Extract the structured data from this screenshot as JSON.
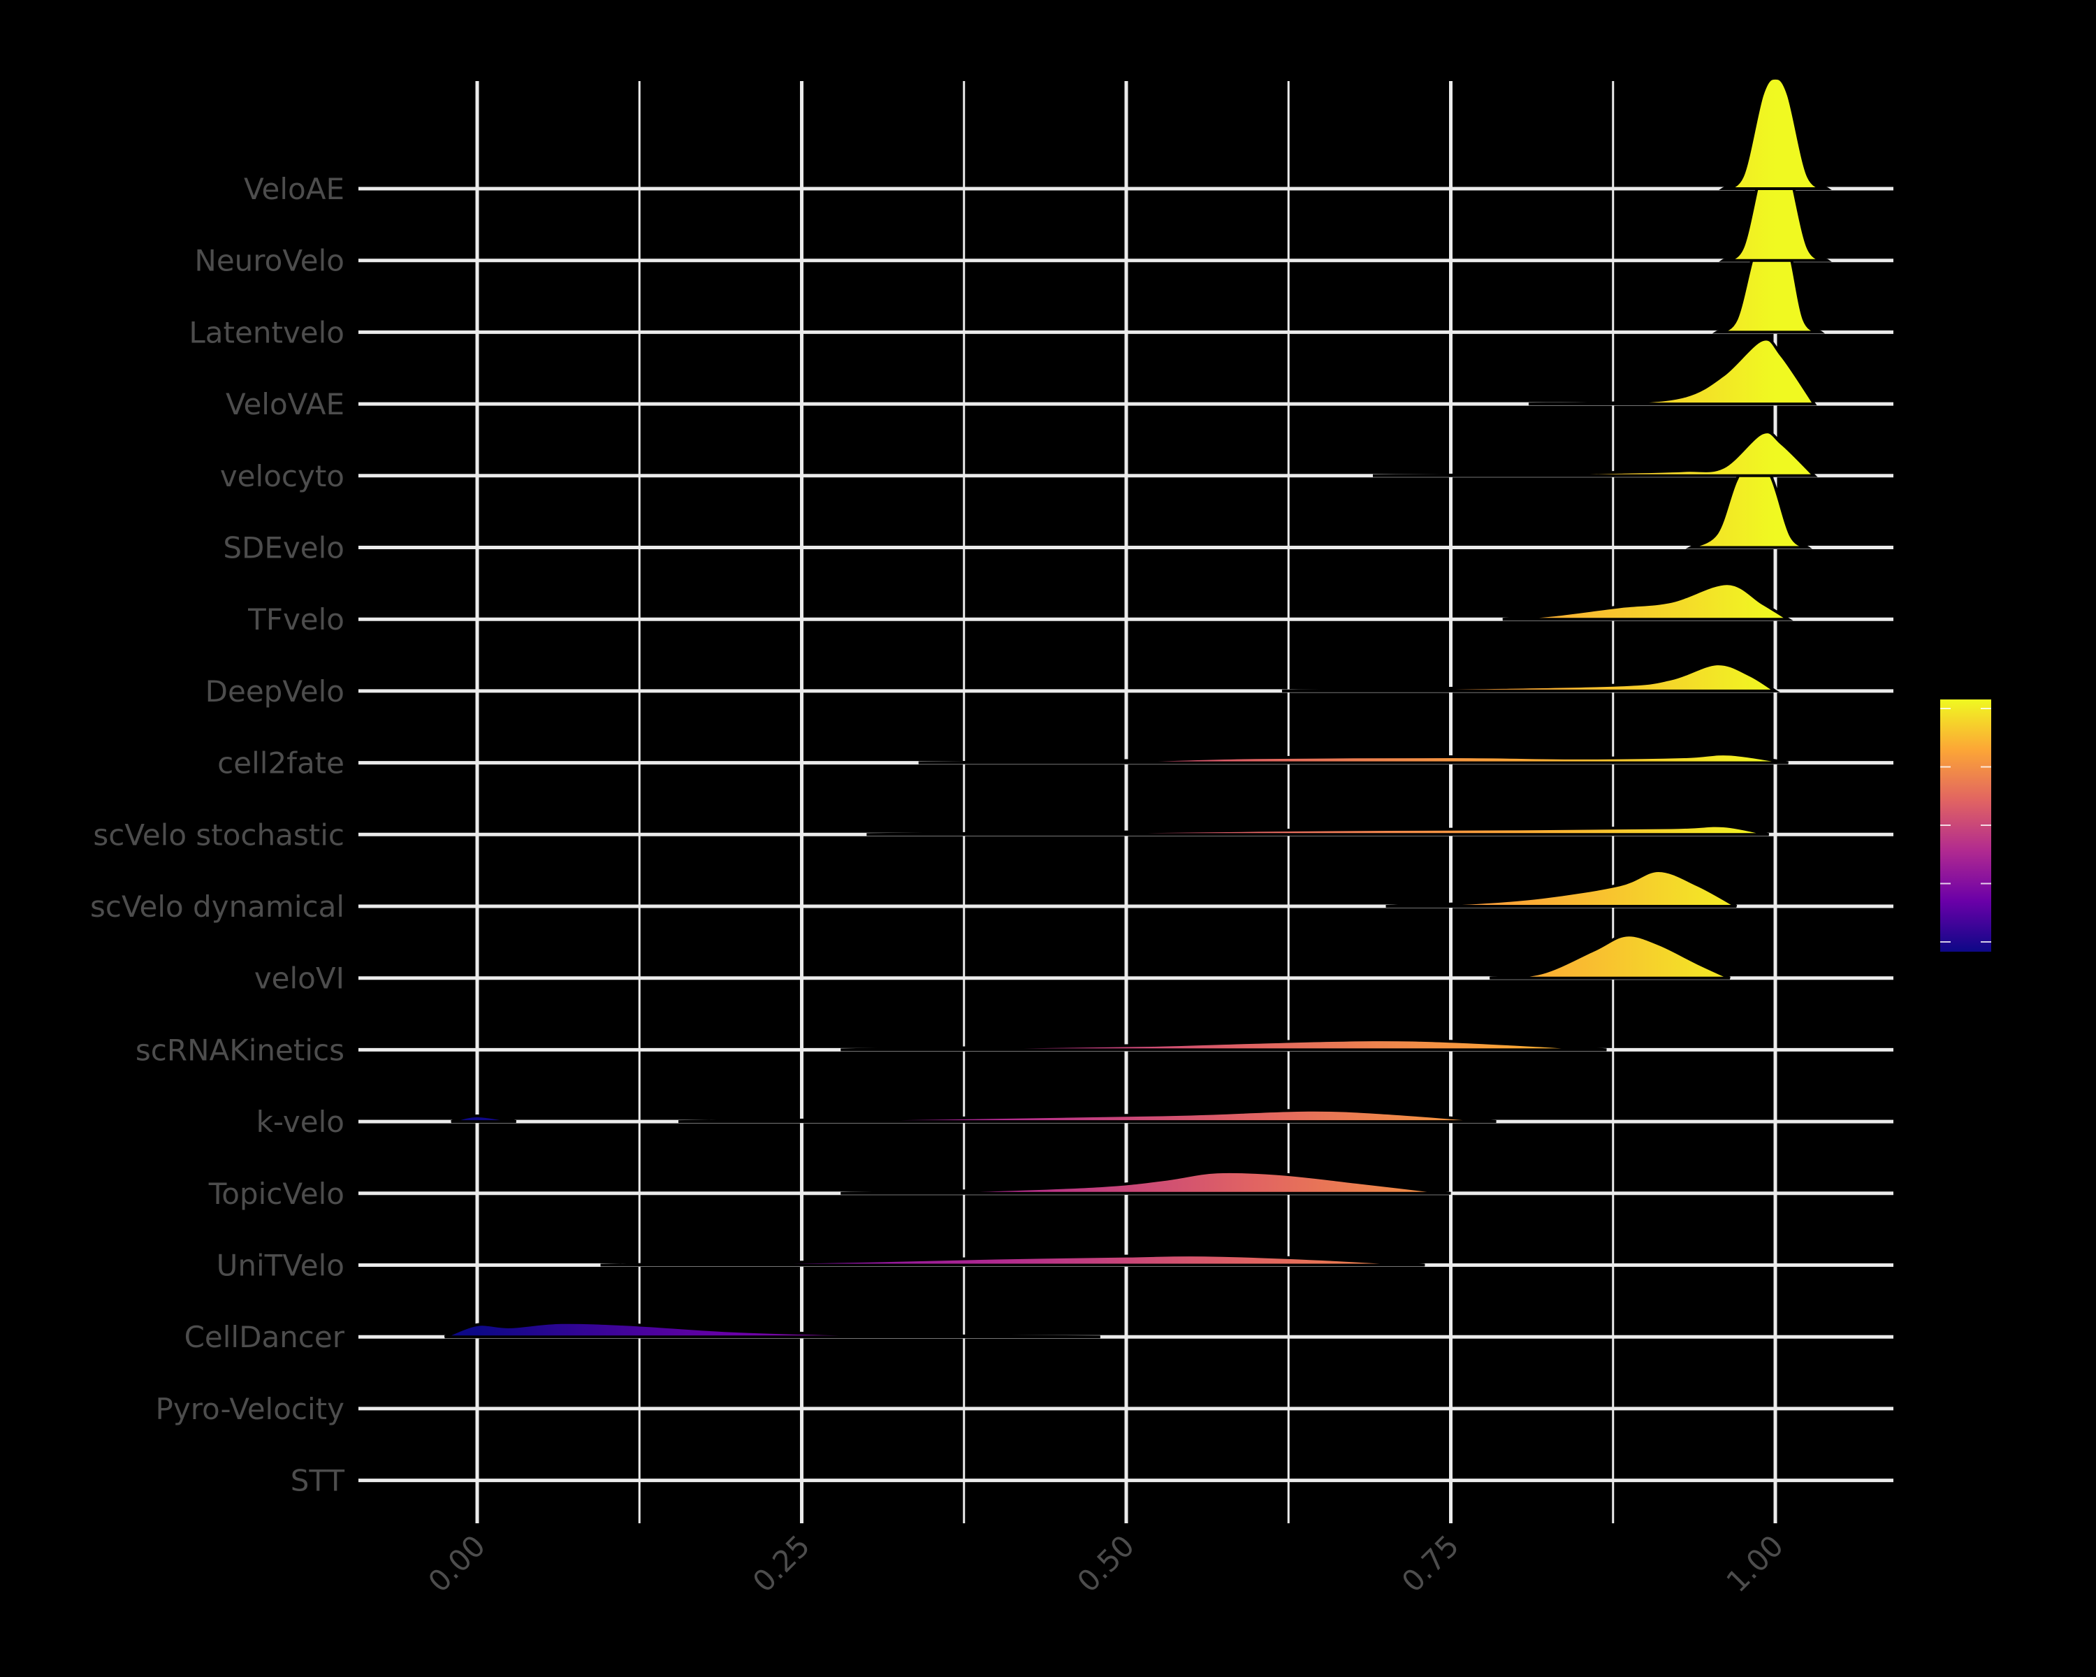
{
  "chart_data": {
    "type": "ridgeline",
    "title": "",
    "xlabel": "",
    "ylabel": "",
    "xlim": [
      -0.04,
      1.08
    ],
    "x_ticks": [
      0.0,
      0.25,
      0.5,
      0.75,
      1.0
    ],
    "x_tick_labels": [
      "0.00",
      "0.25",
      "0.50",
      "0.75",
      "1.00"
    ],
    "x_tick_label_rotation": -45,
    "grid": true,
    "background": "#000000",
    "grid_color": "#ebebeb",
    "label_color": "#4d4d4d",
    "fill_colormap": "plasma",
    "colormap_stops": [
      "#0d0887",
      "#6a00a8",
      "#b12a90",
      "#e16462",
      "#fca636",
      "#f0f921"
    ],
    "legend": {
      "type": "colorbar",
      "position": "right",
      "title": "",
      "tick_count": 5,
      "tick_labels_visible": false
    },
    "categories": [
      "VeloAE",
      "NeuroVelo",
      "Latentvelo",
      "VeloVAE",
      "velocyto",
      "SDEvelo",
      "TFvelo",
      "DeepVelo",
      "cell2fate",
      "scVelo stochastic",
      "scVelo dynamical",
      "veloVI",
      "scRNAKinetics",
      "k-velo",
      "TopicVelo",
      "UniTVelo",
      "CellDancer",
      "Pyro-Velocity",
      "STT"
    ],
    "series": [
      {
        "name": "VeloAE",
        "range": [
          0.96,
          1.04
        ],
        "peak": 1.0,
        "peak_height": 1.55,
        "shape": [
          [
            0.96,
            0
          ],
          [
            0.975,
            0.12
          ],
          [
            0.99,
            0.85
          ],
          [
            1.0,
            1.0
          ],
          [
            1.01,
            0.85
          ],
          [
            1.025,
            0.12
          ],
          [
            1.04,
            0
          ]
        ]
      },
      {
        "name": "NeuroVelo",
        "range": [
          0.96,
          1.04
        ],
        "peak": 1.0,
        "peak_height": 1.55,
        "shape": [
          [
            0.96,
            0
          ],
          [
            0.975,
            0.12
          ],
          [
            0.99,
            0.85
          ],
          [
            1.0,
            1.0
          ],
          [
            1.01,
            0.85
          ],
          [
            1.025,
            0.12
          ],
          [
            1.04,
            0
          ]
        ]
      },
      {
        "name": "Latentvelo",
        "range": [
          0.955,
          1.035
        ],
        "peak": 0.998,
        "peak_height": 1.5,
        "shape": [
          [
            0.955,
            0
          ],
          [
            0.97,
            0.12
          ],
          [
            0.985,
            0.8
          ],
          [
            0.998,
            1.0
          ],
          [
            1.01,
            0.8
          ],
          [
            1.022,
            0.12
          ],
          [
            1.035,
            0
          ]
        ]
      },
      {
        "name": "VeloVAE",
        "range": [
          0.81,
          1.03
        ],
        "peak": 0.99,
        "peak_height": 0.9,
        "shape": [
          [
            0.81,
            0
          ],
          [
            0.88,
            0.02
          ],
          [
            0.93,
            0.12
          ],
          [
            0.96,
            0.45
          ],
          [
            0.99,
            1.0
          ],
          [
            1.005,
            0.75
          ],
          [
            1.03,
            0
          ]
        ]
      },
      {
        "name": "velocyto",
        "range": [
          0.69,
          1.03
        ],
        "peak": 0.99,
        "peak_height": 0.6,
        "shape": [
          [
            0.69,
            0
          ],
          [
            0.8,
            0.03
          ],
          [
            0.88,
            0.08
          ],
          [
            0.93,
            0.12
          ],
          [
            0.96,
            0.2
          ],
          [
            0.99,
            1.0
          ],
          [
            1.005,
            0.75
          ],
          [
            1.03,
            0
          ]
        ]
      },
      {
        "name": "SDEvelo",
        "range": [
          0.935,
          1.025
        ],
        "peak": 0.985,
        "peak_height": 1.35,
        "shape": [
          [
            0.935,
            0
          ],
          [
            0.955,
            0.15
          ],
          [
            0.97,
            0.7
          ],
          [
            0.985,
            1.0
          ],
          [
            0.998,
            0.7
          ],
          [
            1.012,
            0.12
          ],
          [
            1.025,
            0
          ]
        ]
      },
      {
        "name": "TFvelo",
        "range": [
          0.79,
          1.01
        ],
        "peak": 0.963,
        "peak_height": 0.5,
        "shape": [
          [
            0.79,
            0
          ],
          [
            0.83,
            0.12
          ],
          [
            0.88,
            0.35
          ],
          [
            0.92,
            0.5
          ],
          [
            0.963,
            1.0
          ],
          [
            0.99,
            0.45
          ],
          [
            1.01,
            0
          ]
        ]
      },
      {
        "name": "DeepVelo",
        "range": [
          0.62,
          1.0
        ],
        "peak": 0.955,
        "peak_height": 0.38,
        "shape": [
          [
            0.62,
            0
          ],
          [
            0.75,
            0.1
          ],
          [
            0.88,
            0.22
          ],
          [
            0.92,
            0.45
          ],
          [
            0.955,
            1.0
          ],
          [
            0.98,
            0.6
          ],
          [
            1.0,
            0
          ]
        ]
      },
      {
        "name": "cell2fate",
        "range": [
          0.34,
          1.01
        ],
        "peak": 0.965,
        "peak_height": 0.12,
        "shape": [
          [
            0.34,
            0
          ],
          [
            0.5,
            0.25
          ],
          [
            0.6,
            0.6
          ],
          [
            0.75,
            0.7
          ],
          [
            0.85,
            0.55
          ],
          [
            0.93,
            0.7
          ],
          [
            0.965,
            1.0
          ],
          [
            1.01,
            0
          ]
        ]
      },
      {
        "name": "scVelo stochastic",
        "range": [
          0.3,
          0.995
        ],
        "peak": 0.96,
        "peak_height": 0.12,
        "shape": [
          [
            0.3,
            0
          ],
          [
            0.5,
            0.3
          ],
          [
            0.65,
            0.55
          ],
          [
            0.8,
            0.65
          ],
          [
            0.92,
            0.8
          ],
          [
            0.96,
            1.0
          ],
          [
            0.995,
            0
          ]
        ]
      },
      {
        "name": "scVelo dynamical",
        "range": [
          0.7,
          0.97
        ],
        "peak": 0.91,
        "peak_height": 0.5,
        "shape": [
          [
            0.7,
            0
          ],
          [
            0.76,
            0.08
          ],
          [
            0.82,
            0.25
          ],
          [
            0.88,
            0.6
          ],
          [
            0.91,
            1.0
          ],
          [
            0.94,
            0.6
          ],
          [
            0.97,
            0
          ]
        ]
      },
      {
        "name": "veloVI",
        "range": [
          0.78,
          0.965
        ],
        "peak": 0.885,
        "peak_height": 0.6,
        "shape": [
          [
            0.78,
            0
          ],
          [
            0.82,
            0.12
          ],
          [
            0.86,
            0.65
          ],
          [
            0.885,
            1.0
          ],
          [
            0.91,
            0.8
          ],
          [
            0.94,
            0.35
          ],
          [
            0.965,
            0
          ]
        ]
      },
      {
        "name": "scRNAKinetics",
        "range": [
          0.28,
          0.87
        ],
        "peak": 0.69,
        "peak_height": 0.14,
        "shape": [
          [
            0.28,
            0
          ],
          [
            0.4,
            0.25
          ],
          [
            0.52,
            0.45
          ],
          [
            0.6,
            0.75
          ],
          [
            0.69,
            1.0
          ],
          [
            0.75,
            0.85
          ],
          [
            0.82,
            0.4
          ],
          [
            0.87,
            0
          ]
        ]
      },
      {
        "name": "k-velo",
        "range": [
          0.155,
          0.785
        ],
        "peak": 0.64,
        "peak_height": 0.16,
        "shape": [
          [
            0.155,
            0
          ],
          [
            0.3,
            0.2
          ],
          [
            0.45,
            0.45
          ],
          [
            0.55,
            0.65
          ],
          [
            0.64,
            1.0
          ],
          [
            0.7,
            0.75
          ],
          [
            0.785,
            0
          ]
        ]
      },
      {
        "name": "k-velo (minor)",
        "range": [
          -0.02,
          0.03
        ],
        "peak": 0.0,
        "peak_height": 0.08,
        "shape": [
          [
            -0.02,
            0
          ],
          [
            0.0,
            1.0
          ],
          [
            0.03,
            0
          ]
        ]
      },
      {
        "name": "TopicVelo",
        "range": [
          0.28,
          0.75
        ],
        "peak": 0.57,
        "peak_height": 0.3,
        "shape": [
          [
            0.28,
            0
          ],
          [
            0.38,
            0.12
          ],
          [
            0.48,
            0.35
          ],
          [
            0.53,
            0.65
          ],
          [
            0.57,
            1.0
          ],
          [
            0.62,
            0.9
          ],
          [
            0.68,
            0.5
          ],
          [
            0.75,
            0
          ]
        ]
      },
      {
        "name": "UniTVelo",
        "range": [
          0.095,
          0.73
        ],
        "peak": 0.56,
        "peak_height": 0.14,
        "shape": [
          [
            0.095,
            0
          ],
          [
            0.2,
            0.2
          ],
          [
            0.3,
            0.4
          ],
          [
            0.4,
            0.7
          ],
          [
            0.5,
            0.9
          ],
          [
            0.56,
            1.0
          ],
          [
            0.65,
            0.6
          ],
          [
            0.73,
            0
          ]
        ]
      },
      {
        "name": "CellDancer",
        "range": [
          -0.025,
          0.48
        ],
        "peak": 0.065,
        "peak_height": 0.2,
        "shape": [
          [
            -0.025,
            0
          ],
          [
            0.0,
            0.85
          ],
          [
            0.025,
            0.7
          ],
          [
            0.065,
            1.0
          ],
          [
            0.12,
            0.85
          ],
          [
            0.2,
            0.4
          ],
          [
            0.3,
            0.15
          ],
          [
            0.4,
            0.04
          ],
          [
            0.48,
            0
          ]
        ]
      },
      {
        "name": "Pyro-Velocity",
        "range": null,
        "peak": null,
        "peak_height": 0,
        "shape": []
      },
      {
        "name": "STT",
        "range": null,
        "peak": null,
        "peak_height": 0,
        "shape": []
      }
    ]
  }
}
